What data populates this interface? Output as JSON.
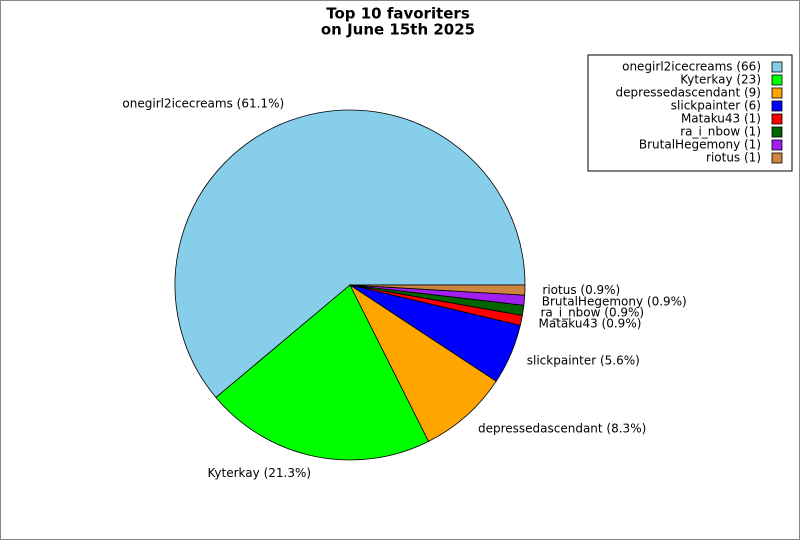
{
  "chart_data": {
    "type": "pie",
    "title": "Top 10 favoriters",
    "subtitle": "on June 15th 2025",
    "categories": [
      "onegirl2icecreams",
      "Kyterkay",
      "depressedascendant",
      "slickpainter",
      "Mataku43",
      "ra_i_nbow",
      "BrutalHegemony",
      "riotus"
    ],
    "values": [
      66,
      23,
      9,
      6,
      1,
      1,
      1,
      1
    ],
    "legend_labels": [
      "onegirl2icecreams (66)",
      "Kyterkay (23)",
      "depressedascendant (9)",
      "slickpainter (6)",
      "Mataku43 (1)",
      "ra_i_nbow (1)",
      "BrutalHegemony (1)",
      "riotus (1)"
    ],
    "value_labels": [
      "onegirl2icecreams (61.1%)",
      "Kyterkay (21.3%)",
      "depressedascendant (8.3%)",
      "slickpainter (5.6%)",
      "Mataku43 (0.9%)",
      "ra_i_nbow (0.9%)",
      "BrutalHegemony (0.9%)",
      "riotus (0.9%)"
    ],
    "colors": [
      "#87ceeb",
      "#00ff00",
      "#ffa500",
      "#0000ff",
      "#ff0000",
      "#006400",
      "#a020f0",
      "#cd853f"
    ],
    "legend": "upper right"
  }
}
